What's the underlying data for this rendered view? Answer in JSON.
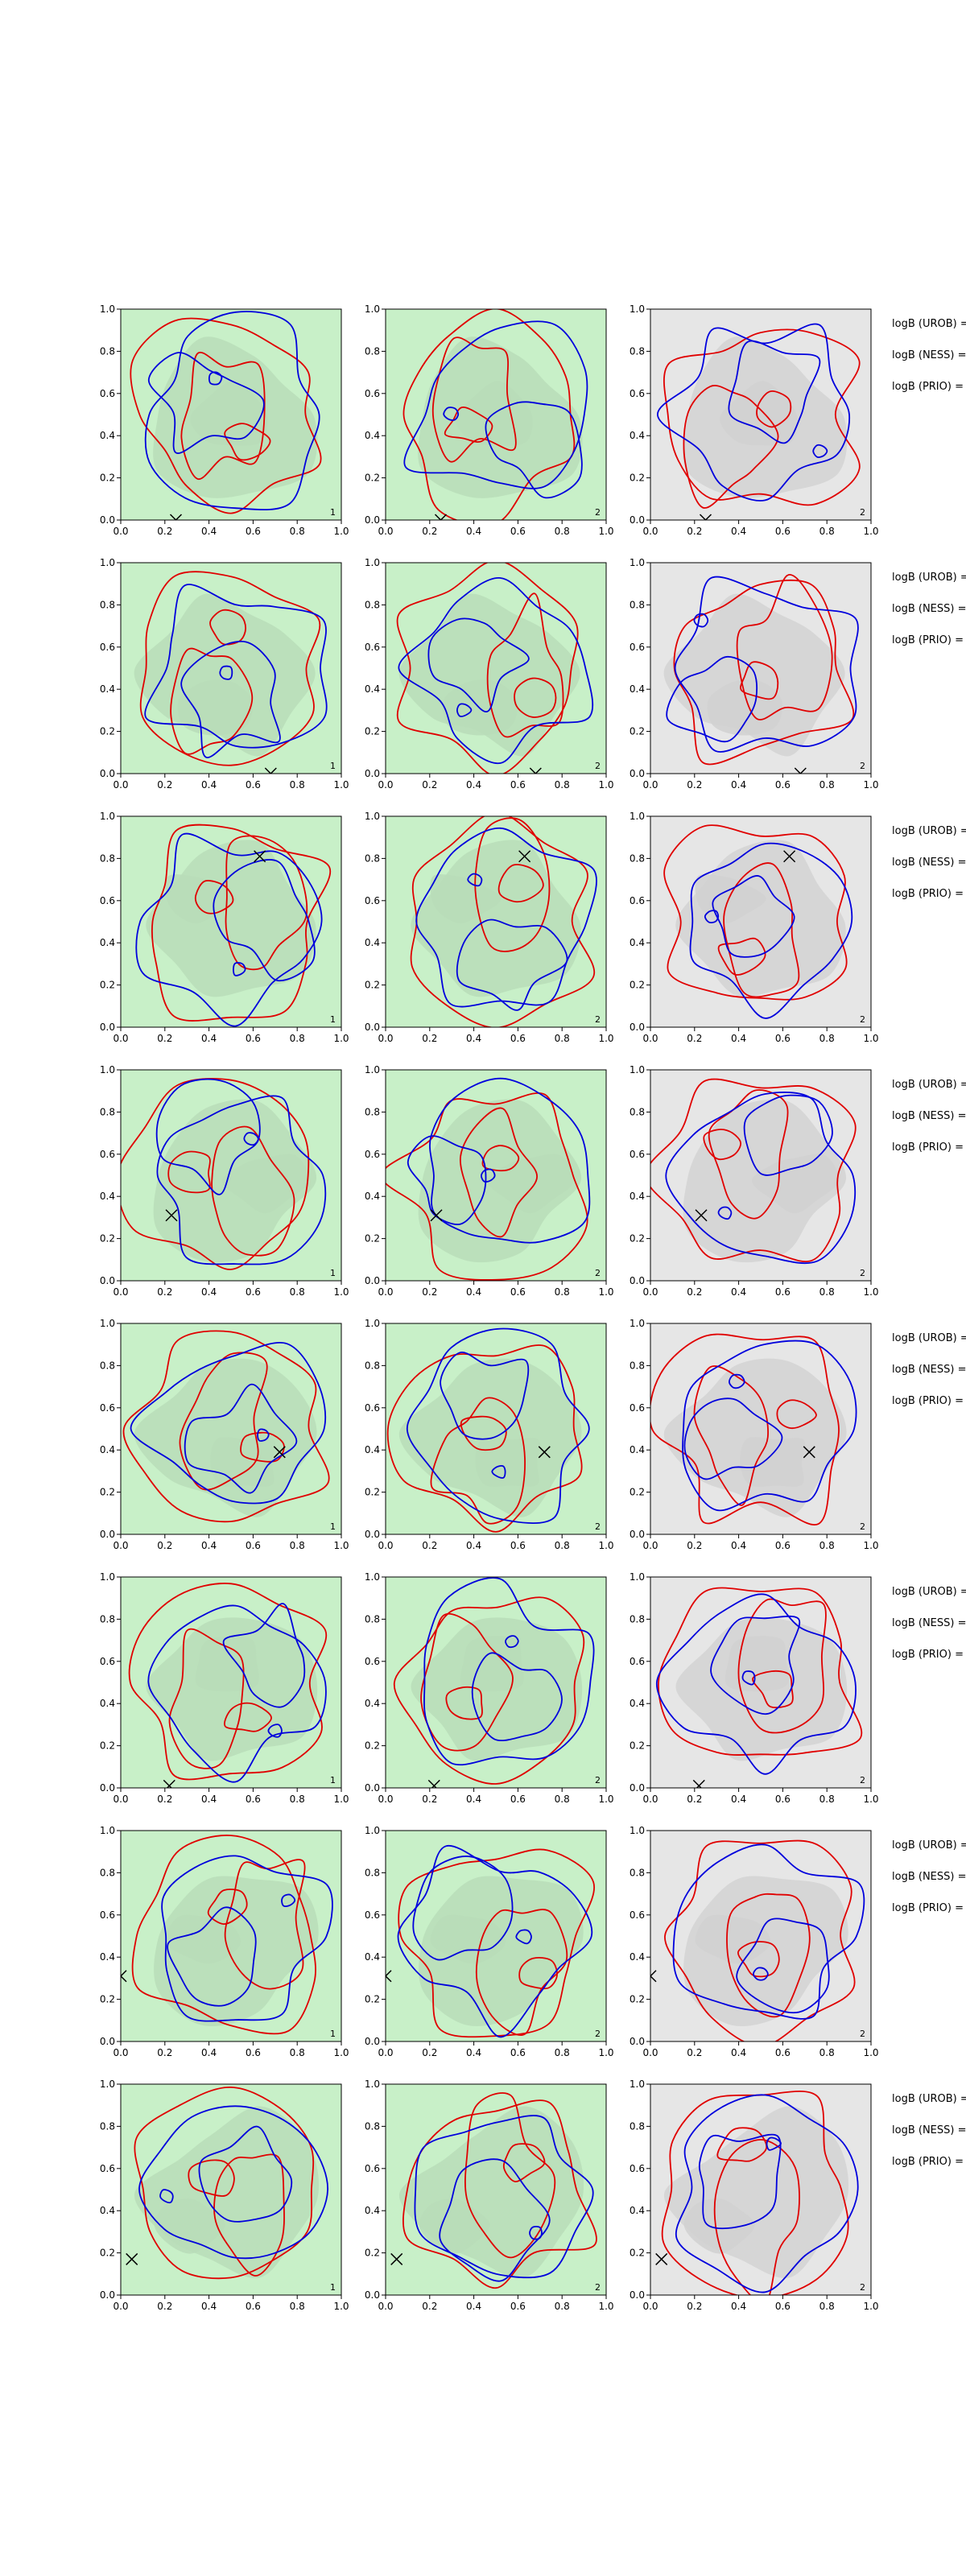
{
  "chart_data": {
    "type": "contour",
    "grid": {
      "rows": 8,
      "cols": 3
    },
    "xlim": [
      0,
      1
    ],
    "ylim": [
      0,
      1
    ],
    "xticks": [
      "0.0",
      "0.2",
      "0.4",
      "0.6",
      "0.8",
      "1.0"
    ],
    "yticks": [
      "0.0",
      "0.2",
      "0.4",
      "0.6",
      "0.8",
      "1.0"
    ],
    "background_colors": [
      "#c8f0c8",
      "#c8f0c8",
      "#e6e6e6"
    ],
    "contour_colors": {
      "red": "#e00000",
      "blue": "#0000dd"
    },
    "marker": "x",
    "side_labels": [
      "logB (UROB) =",
      "logB (NESS) =",
      "logB (PRIO) ="
    ],
    "panel_numbers": [
      "1",
      "2",
      "2"
    ],
    "rows": [
      {
        "marker": [
          0.25,
          0.0
        ]
      },
      {
        "marker": [
          0.68,
          0.0
        ]
      },
      {
        "marker": [
          0.63,
          0.81
        ]
      },
      {
        "marker": [
          0.23,
          0.31
        ]
      },
      {
        "marker": [
          0.72,
          0.39
        ]
      },
      {
        "marker": [
          0.22,
          0.01
        ]
      },
      {
        "marker": [
          0.0,
          0.31
        ]
      },
      {
        "marker": [
          0.05,
          0.17
        ]
      }
    ]
  }
}
